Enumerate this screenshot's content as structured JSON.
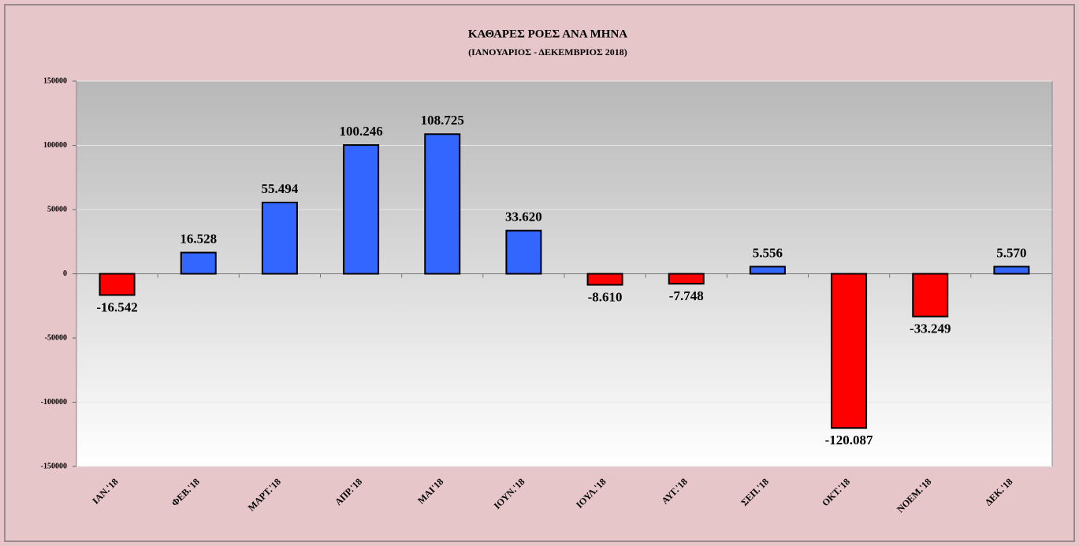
{
  "chart_data": {
    "type": "bar",
    "title": "ΚΑΘΑΡΕΣ ΡΟΕΣ ΑΝΑ ΜΗΝΑ",
    "subtitle": "(ΙΑΝΟΥΑΡΙΟΣ - ΔΕΚΕΜΒΡΙΟΣ 2018)",
    "categories": [
      "ΙΑΝ.'18",
      "ΦΕΒ.'18",
      "ΜΑΡΤ.'18",
      "ΑΠΡ.'18",
      "ΜΑΙ'18",
      "ΙΟΥΝ.'18",
      "ΙΟΥΛ.'18",
      "ΑΥΓ.'18",
      "ΣΕΠ.'18",
      "ΟΚΤ.'18",
      "ΝΟΕΜ.'18",
      "ΔΕΚ.'18"
    ],
    "values": [
      -16542,
      16528,
      55494,
      100246,
      108725,
      33620,
      -8610,
      -7748,
      5556,
      -120087,
      -33249,
      5570
    ],
    "value_labels": [
      "-16.542",
      "16.528",
      "55.494",
      "100.246",
      "108.725",
      "33.620",
      "-8.610",
      "-7.748",
      "5.556",
      "-120.087",
      "-33.249",
      "5.570"
    ],
    "color": "#3366ff",
    "negative_color": "#ff0000",
    "ylim": [
      -150000,
      150000
    ],
    "yticks": [
      -150000,
      -100000,
      -50000,
      0,
      50000,
      100000,
      150000
    ],
    "grid": true
  }
}
